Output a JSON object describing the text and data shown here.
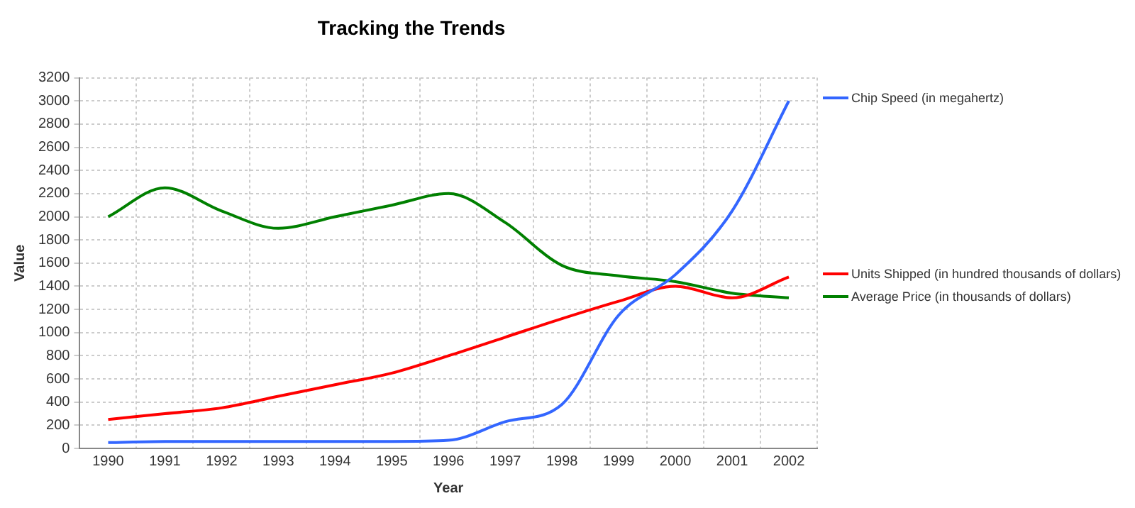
{
  "chart_data": {
    "type": "line",
    "title": "Tracking the Trends",
    "xlabel": "Year",
    "ylabel": "Value",
    "categories": [
      "1990",
      "1991",
      "1992",
      "1993",
      "1994",
      "1995",
      "1996",
      "1997",
      "1998",
      "1999",
      "2000",
      "2001",
      "2002"
    ],
    "series": [
      {
        "name": "Chip Speed (in megahertz)",
        "color": "#3366ff",
        "values": [
          50,
          60,
          60,
          60,
          60,
          60,
          70,
          230,
          380,
          1150,
          1500,
          2050,
          3000
        ]
      },
      {
        "name": "Units Shipped (in hundred thousands of dollars)",
        "color": "#ff0000",
        "values": [
          250,
          300,
          350,
          450,
          550,
          650,
          800,
          960,
          1120,
          1270,
          1400,
          1300,
          1480
        ]
      },
      {
        "name": "Average Price (in thousands of dollars)",
        "color": "#008000",
        "values": [
          2000,
          2250,
          2050,
          1900,
          2000,
          2100,
          2200,
          1950,
          1580,
          1490,
          1440,
          1340,
          1300
        ]
      }
    ],
    "ylim": [
      0,
      3200
    ],
    "yticks": [
      0,
      200,
      400,
      600,
      800,
      1000,
      1200,
      1400,
      1600,
      1800,
      2000,
      2200,
      2400,
      2600,
      2800,
      3000,
      3200
    ],
    "grid": true,
    "legend": "right",
    "marker": "none",
    "line_style": "solid"
  }
}
